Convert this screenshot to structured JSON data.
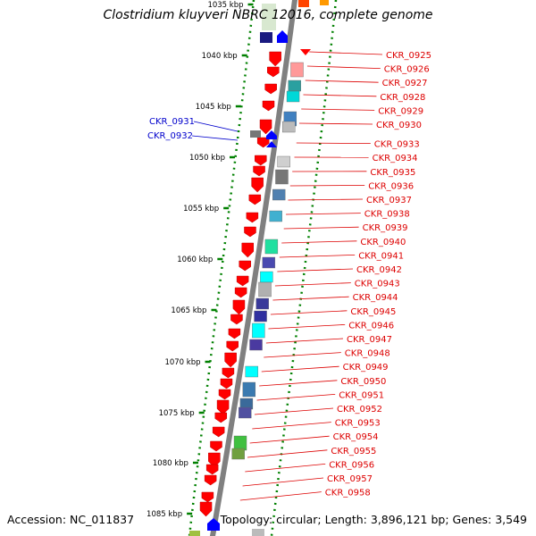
{
  "title": "Clostridium kluyveri NBRC 12016, complete genome",
  "footer": {
    "accession": "Accession: NC_011837",
    "topology": "Topology: circular; Length: 3,896,121 bp; Genes: 3,549"
  },
  "colors": {
    "forward_gene": "#ff0000",
    "reverse_gene": "#0000ff",
    "right_label": "#dd0000",
    "left_label": "#0000cc",
    "tick": "#008000",
    "backbone": "#808080"
  },
  "scale": {
    "unit": "kbp",
    "first_visible": 1035,
    "last_visible": 1085,
    "step": 5
  },
  "scale_labels": [
    "1035 kbp",
    "1040 kbp",
    "1045 kbp",
    "1050 kbp",
    "1055 kbp",
    "1060 kbp",
    "1065 kbp",
    "1070 kbp",
    "1075 kbp",
    "1080 kbp",
    "1085 kbp"
  ],
  "right_labels": [
    "CKR_0925",
    "CKR_0926",
    "CKR_0927",
    "CKR_0928",
    "CKR_0929",
    "CKR_0930",
    "CKR_0933",
    "CKR_0934",
    "CKR_0935",
    "CKR_0936",
    "CKR_0937",
    "CKR_0938",
    "CKR_0939",
    "CKR_0940",
    "CKR_0941",
    "CKR_0942",
    "CKR_0943",
    "CKR_0944",
    "CKR_0945",
    "CKR_0946",
    "CKR_0947",
    "CKR_0948",
    "CKR_0949",
    "CKR_0950",
    "CKR_0951",
    "CKR_0952",
    "CKR_0953",
    "CKR_0954",
    "CKR_0955",
    "CKR_0956",
    "CKR_0957",
    "CKR_0958"
  ],
  "left_labels": [
    "CKR_0931",
    "CKR_0932"
  ],
  "gene_function_colors": [
    "#ff9999",
    "#2aa0a0",
    "#00d8d8",
    "#4080c0",
    "#bbbbbb",
    "#cfcfcf",
    "#777777",
    "#5080b0",
    "#40b0d0",
    "#20e0a0",
    "#4a4ab0",
    "#00ffff",
    "#b0b0b0",
    "#3a3a9a",
    "#3030a0",
    "#00ffff",
    "#4a3aa0",
    "#00ffff",
    "#3a7ab0",
    "#3a6a9a",
    "#5050a0",
    "#40c040",
    "#70a040",
    "#808080",
    "#a0c040",
    "#d0e0d0"
  ]
}
